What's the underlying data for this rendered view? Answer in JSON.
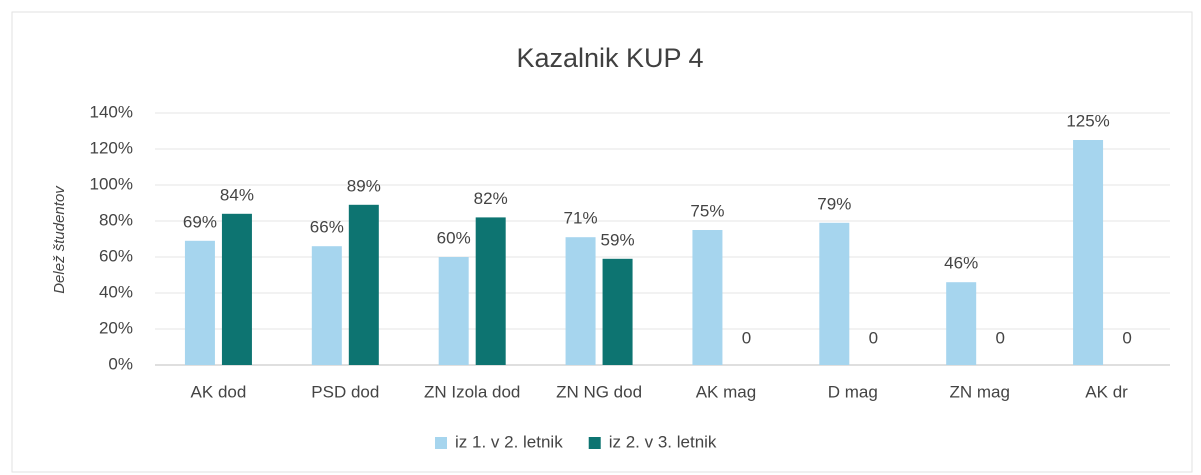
{
  "chart_data": {
    "type": "bar",
    "title": "Kazalnik KUP 4",
    "y_label": "Delež študentov",
    "categories": [
      "AK dod",
      "PSD dod",
      "ZN Izola dod",
      "ZN NG dod",
      "AK mag",
      "D mag",
      "ZN mag",
      "AK dr"
    ],
    "series": [
      {
        "name": "iz 1. v 2. letnik",
        "color": "#a6d5ee",
        "values": [
          69,
          66,
          60,
          71,
          75,
          79,
          46,
          125
        ],
        "value_labels": [
          "69%",
          "66%",
          "60%",
          "71%",
          "75%",
          "79%",
          "46%",
          "125%"
        ]
      },
      {
        "name": "iz 2. v 3. letnik",
        "color": "#0d7471",
        "values": [
          84,
          89,
          82,
          59,
          0,
          0,
          0,
          0
        ],
        "value_labels": [
          "84%",
          "89%",
          "82%",
          "59%",
          "0",
          "0",
          "0",
          "0"
        ]
      }
    ],
    "ylim": [
      0,
      140
    ],
    "yticks": [
      {
        "value": 0,
        "label": "0%"
      },
      {
        "value": 20,
        "label": "20%"
      },
      {
        "value": 40,
        "label": "40%"
      },
      {
        "value": 60,
        "label": "60%"
      },
      {
        "value": 80,
        "label": "80%"
      },
      {
        "value": 100,
        "label": "100%"
      },
      {
        "value": 120,
        "label": "120%"
      },
      {
        "value": 140,
        "label": "140%"
      }
    ],
    "grid": true,
    "legend": "bottom"
  }
}
